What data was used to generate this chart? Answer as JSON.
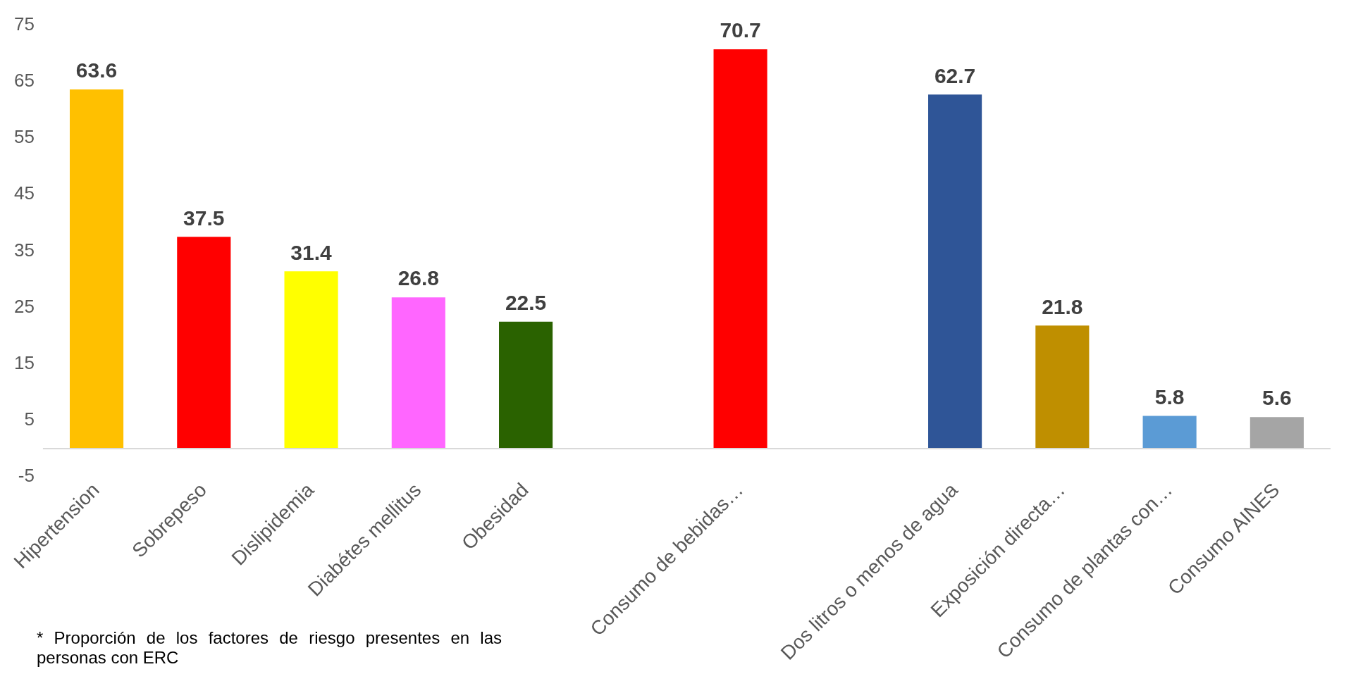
{
  "chart_data": {
    "type": "bar",
    "categories": [
      "Hipertension",
      "Sobrepeso",
      "Dislipidemia",
      "Diabétes mellitus",
      "Obesidad",
      null,
      "Consumo de bebidas…",
      null,
      "Dos litros o menos de agua",
      "Exposición directa…",
      "Consumo de plantas con…",
      "Consumo AINES"
    ],
    "values": [
      63.6,
      37.5,
      31.4,
      26.8,
      22.5,
      null,
      70.7,
      null,
      62.7,
      21.8,
      5.8,
      5.6
    ],
    "colors": [
      "#ffc000",
      "#ff0000",
      "#ffff00",
      "#ff66ff",
      "#2a6200",
      "#ffffff",
      "#ff0000",
      "#ffffff",
      "#2f5597",
      "#bf8f00",
      "#5b9bd5",
      "#a5a5a5"
    ],
    "ylim": [
      -5,
      75
    ],
    "yticks": [
      -5,
      5,
      15,
      25,
      35,
      45,
      55,
      65,
      75
    ],
    "data_labels": true,
    "grid": false,
    "legend": false,
    "annotations": [
      "* Proporción de los factores de riesgo presentes en las personas con ERC"
    ]
  }
}
